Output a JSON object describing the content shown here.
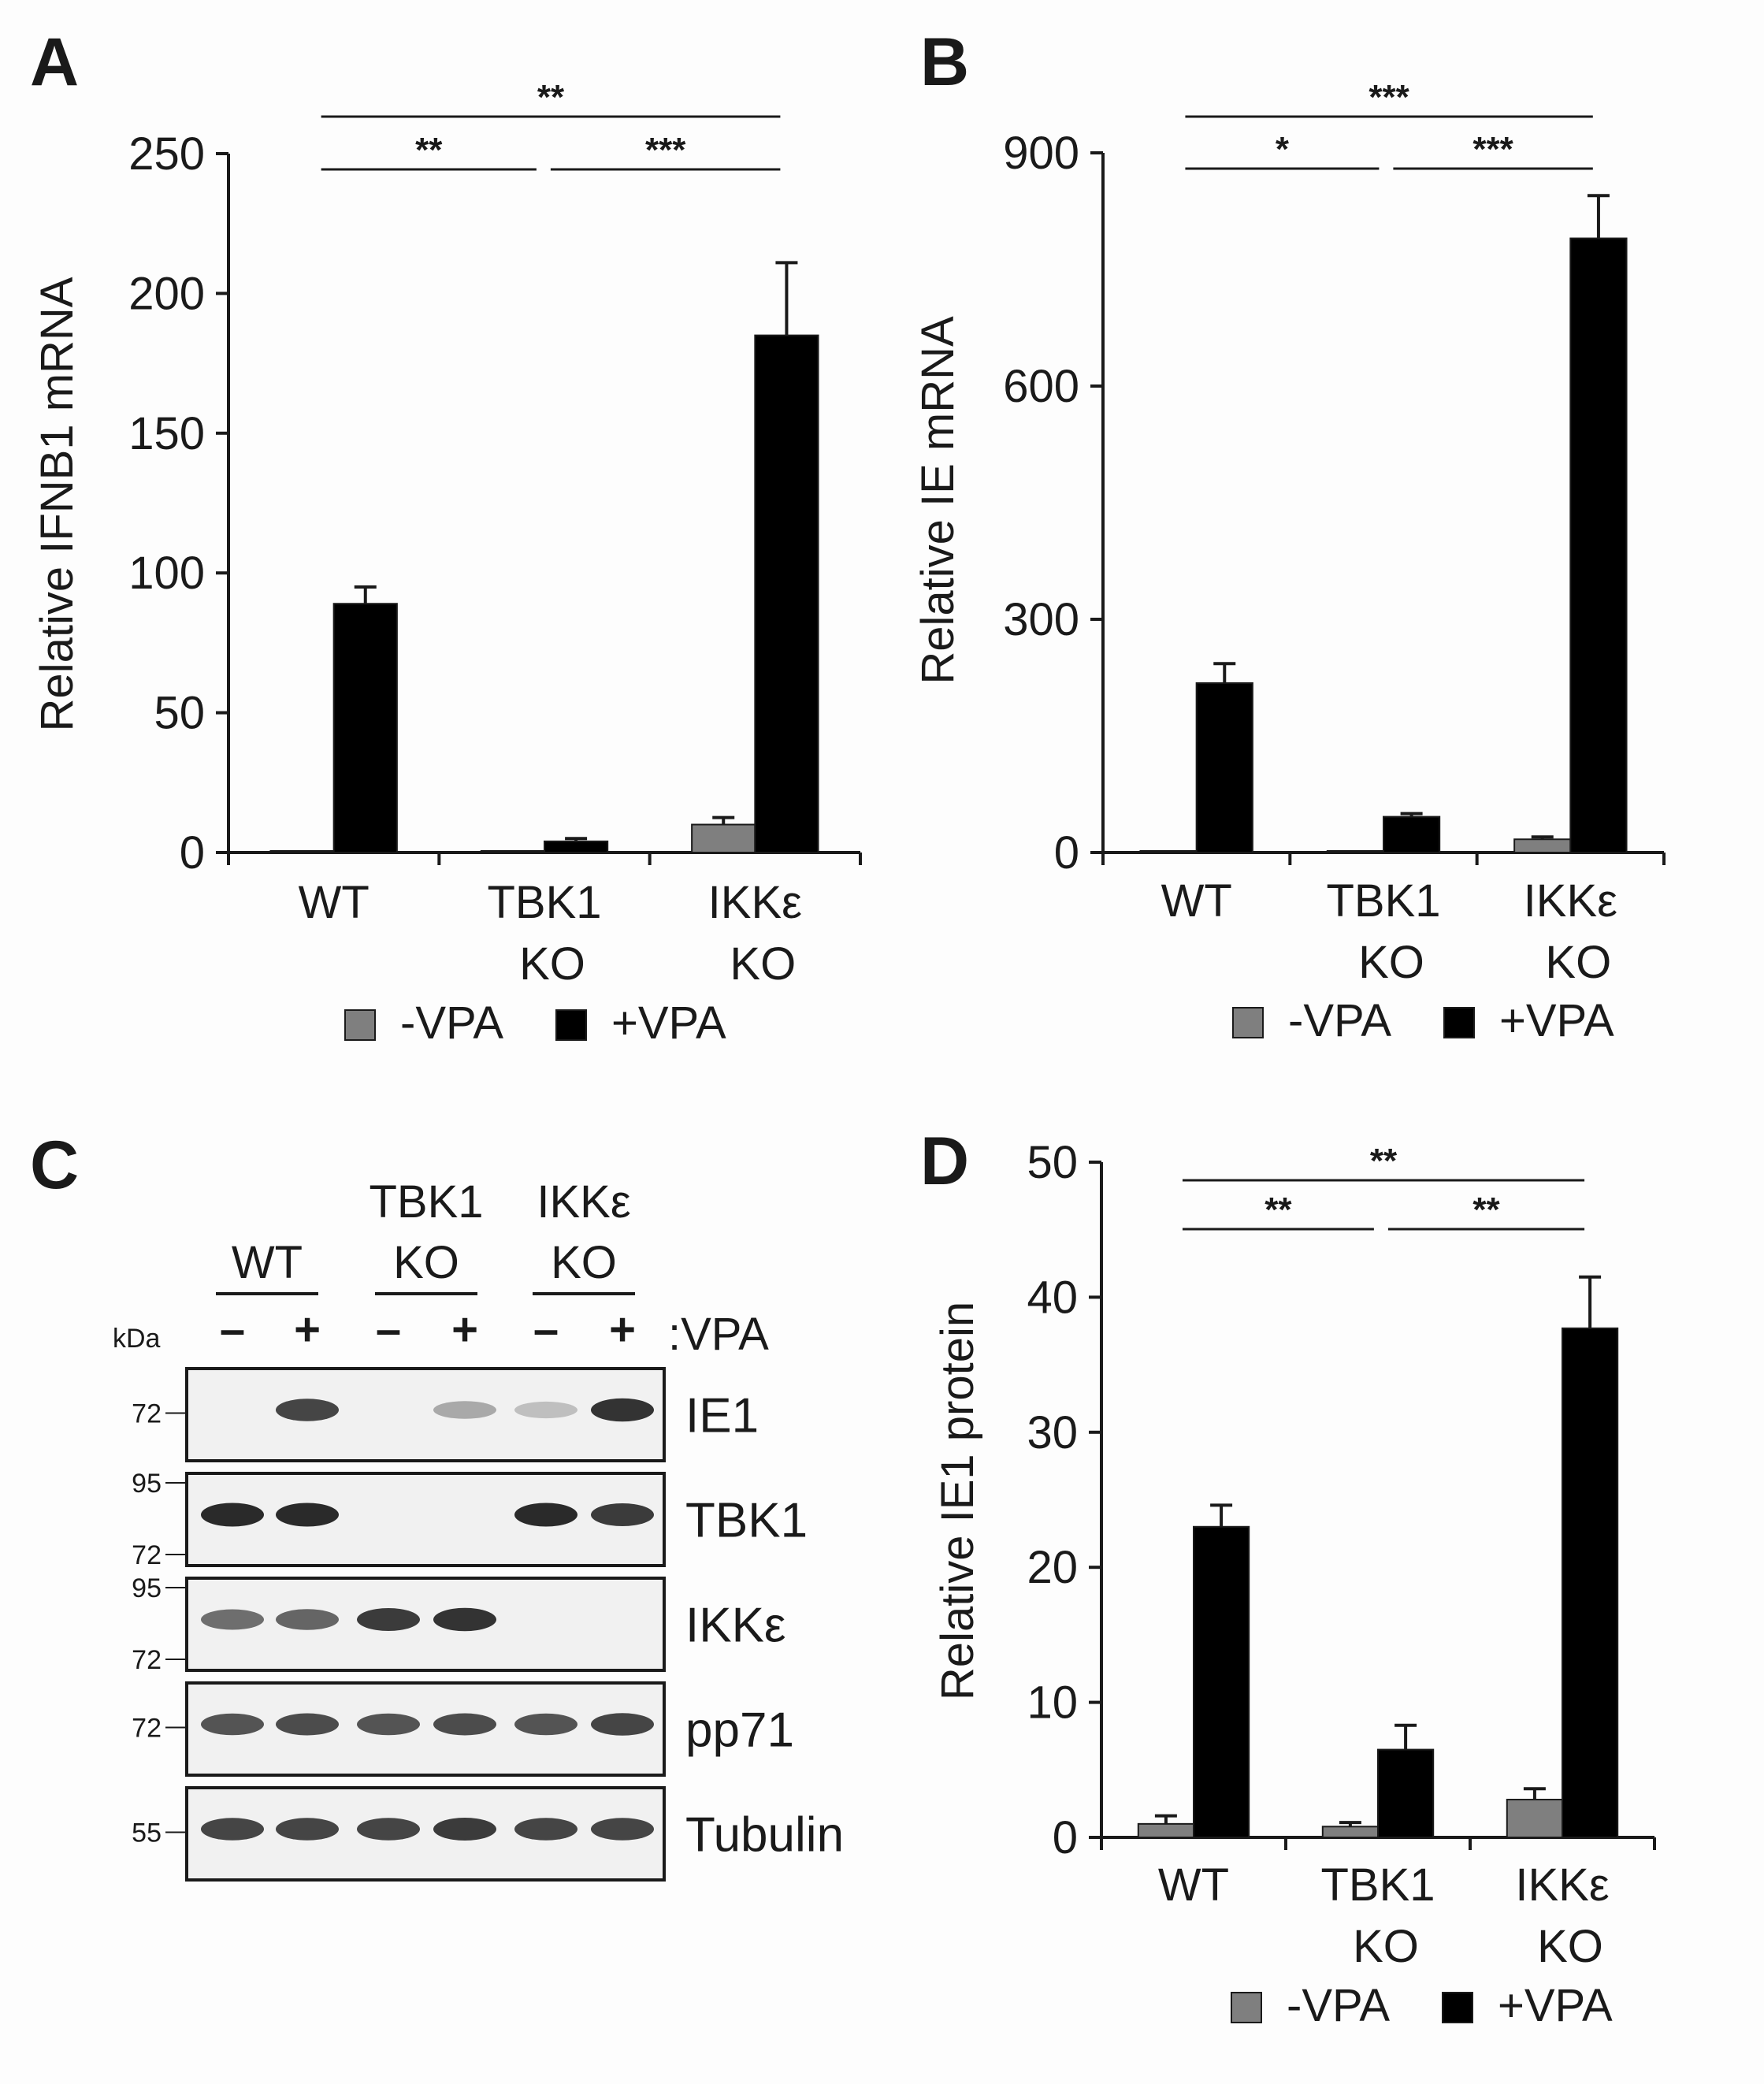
{
  "colors": {
    "minus_vpa": "#7f7f7f",
    "plus_vpa": "#000000",
    "axis": "#1a1a1a",
    "blot_bg": "#f1f1f1",
    "band": "#2a2a2a"
  },
  "legend": {
    "minus": "-VPA",
    "plus": "+VPA"
  },
  "chart_data": [
    {
      "panel": "A",
      "type": "bar",
      "ylabel": "Relative IFNB1 mRNA",
      "ylim": [
        0,
        250
      ],
      "yticks": [
        0,
        50,
        100,
        150,
        200,
        250
      ],
      "categories": [
        [
          "WT"
        ],
        [
          "TBK1",
          "KO"
        ],
        [
          "IKKε",
          "KO"
        ]
      ],
      "series": [
        {
          "name": "-VPA",
          "values": [
            0.3,
            0.5,
            10
          ],
          "errors": [
            0.2,
            0.3,
            2.5
          ]
        },
        {
          "name": "+VPA",
          "values": [
            89,
            4,
            185
          ],
          "errors": [
            6,
            1,
            26
          ]
        }
      ],
      "significance": [
        {
          "from": 0,
          "to": 2,
          "label": "**",
          "level": 2
        },
        {
          "from": 0,
          "to": 1,
          "label": "**",
          "level": 1
        },
        {
          "from": 1,
          "to": 2,
          "label": "***",
          "level": 1
        }
      ]
    },
    {
      "panel": "B",
      "type": "bar",
      "ylabel": "Relative IE mRNA",
      "ylim": [
        0,
        900
      ],
      "yticks": [
        0,
        300,
        600,
        900
      ],
      "categories": [
        [
          "WT"
        ],
        [
          "TBK1",
          "KO"
        ],
        [
          "IKKε",
          "KO"
        ]
      ],
      "series": [
        {
          "name": "-VPA",
          "values": [
            2,
            2,
            17
          ],
          "errors": [
            1,
            1,
            3
          ]
        },
        {
          "name": "+VPA",
          "values": [
            218,
            46,
            790
          ],
          "errors": [
            25,
            4,
            55
          ]
        }
      ],
      "significance": [
        {
          "from": 0,
          "to": 2,
          "label": "***",
          "level": 2
        },
        {
          "from": 0,
          "to": 1,
          "label": "*",
          "level": 1
        },
        {
          "from": 1,
          "to": 2,
          "label": "***",
          "level": 1
        }
      ]
    },
    {
      "panel": "D",
      "type": "bar",
      "ylabel": "Relative IE1 protein",
      "ylim": [
        0,
        50
      ],
      "yticks": [
        0,
        10,
        20,
        30,
        40,
        50
      ],
      "categories": [
        [
          "WT"
        ],
        [
          "TBK1",
          "KO"
        ],
        [
          "IKKε",
          "KO"
        ]
      ],
      "series": [
        {
          "name": "-VPA",
          "values": [
            1,
            0.8,
            2.8
          ],
          "errors": [
            0.6,
            0.3,
            0.8
          ]
        },
        {
          "name": "+VPA",
          "values": [
            23,
            6.5,
            37.7
          ],
          "errors": [
            1.6,
            1.8,
            3.8
          ]
        }
      ],
      "significance": [
        {
          "from": 0,
          "to": 2,
          "label": "**",
          "level": 2
        },
        {
          "from": 0,
          "to": 1,
          "label": "**",
          "level": 1
        },
        {
          "from": 1,
          "to": 2,
          "label": "**",
          "level": 1
        }
      ]
    }
  ],
  "western_blot": {
    "panel": "C",
    "kda_label": "kDa",
    "vpa_label": ":VPA",
    "groups": [
      [
        "WT"
      ],
      [
        "TBK1",
        "KO"
      ],
      [
        "IKKε",
        "KO"
      ]
    ],
    "lane_signs": [
      "–",
      "+",
      "–",
      "+",
      "–",
      "+"
    ],
    "rows": [
      {
        "label": "IE1",
        "markers": [
          "72"
        ],
        "intensity": [
          0,
          0.85,
          0,
          0.25,
          0.12,
          0.95
        ]
      },
      {
        "label": "TBK1",
        "markers": [
          "95",
          "72"
        ],
        "intensity": [
          1,
          1,
          0,
          0,
          1,
          0.9
        ]
      },
      {
        "label": "IKKε",
        "markers": [
          "95",
          "72"
        ],
        "intensity": [
          0.6,
          0.65,
          0.9,
          0.95,
          0,
          0
        ]
      },
      {
        "label": "pp71",
        "markers": [
          "72"
        ],
        "intensity": [
          0.75,
          0.8,
          0.75,
          0.8,
          0.75,
          0.85
        ]
      },
      {
        "label": "Tubulin",
        "markers": [
          "55"
        ],
        "intensity": [
          0.85,
          0.85,
          0.85,
          0.9,
          0.85,
          0.85
        ]
      }
    ]
  }
}
